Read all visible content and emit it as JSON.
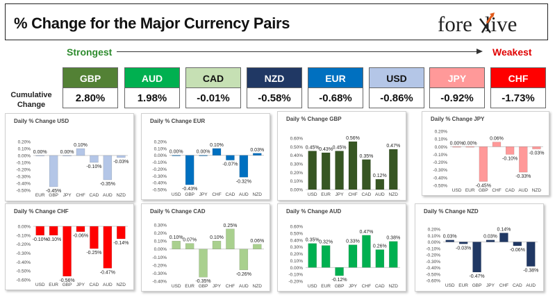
{
  "header": {
    "title": "% Change for the Major Currency Pairs",
    "logo_text": "forexlive"
  },
  "scale": {
    "strongest": "Strongest",
    "weakest": "Weakest"
  },
  "cumulative_label": "Cumulative Change",
  "currencies": [
    {
      "name": "GBP",
      "value": "2.80%",
      "color": "#538135",
      "text_color": "#ffffff"
    },
    {
      "name": "AUD",
      "value": "1.98%",
      "color": "#00b050",
      "text_color": "#ffffff"
    },
    {
      "name": "CAD",
      "value": "-0.01%",
      "color": "#c6e0b4",
      "text_color": "#111111"
    },
    {
      "name": "NZD",
      "value": "-0.58%",
      "color": "#203864",
      "text_color": "#ffffff"
    },
    {
      "name": "EUR",
      "value": "-0.68%",
      "color": "#0070c0",
      "text_color": "#ffffff"
    },
    {
      "name": "USD",
      "value": "-0.86%",
      "color": "#b4c6e7",
      "text_color": "#111111"
    },
    {
      "name": "JPY",
      "value": "-0.92%",
      "color": "#ff9999",
      "text_color": "#ffffff"
    },
    {
      "name": "CHF",
      "value": "-1.73%",
      "color": "#ff0000",
      "text_color": "#ffffff"
    }
  ],
  "chart_data": [
    {
      "type": "bar",
      "title": "Daily % Change USD",
      "color": "#b4c6e7",
      "categories": [
        "EUR",
        "GBP",
        "JPY",
        "CHF",
        "CAD",
        "AUD",
        "NZD"
      ],
      "values": [
        0.0,
        -0.45,
        0.0,
        0.1,
        -0.1,
        -0.35,
        -0.03
      ],
      "labels": [
        "0.00%",
        "-0.45%",
        "0.00%",
        "0.10%",
        "-0.10%",
        "-0.35%",
        "-0.03%"
      ],
      "yticks": [
        "0.20%",
        "0.10%",
        "0.00%",
        "-0.10%",
        "-0.20%",
        "-0.30%",
        "-0.40%",
        "-0.50%"
      ],
      "ylim": [
        -0.5,
        0.2
      ]
    },
    {
      "type": "bar",
      "title": "Daily % Change EUR",
      "color": "#0070c0",
      "categories": [
        "USD",
        "GBP",
        "JPY",
        "CHF",
        "CAD",
        "AUD",
        "NZD"
      ],
      "values": [
        0.0,
        -0.43,
        0.0,
        0.1,
        -0.07,
        -0.32,
        0.03
      ],
      "labels": [
        "0.00%",
        "-0.43%",
        "0.00%",
        "0.10%",
        "-0.07%",
        "-0.32%",
        "0.03%"
      ],
      "yticks": [
        "0.20%",
        "0.10%",
        "0.00%",
        "-0.10%",
        "-0.20%",
        "-0.30%",
        "-0.40%",
        "-0.50%"
      ],
      "ylim": [
        -0.5,
        0.2
      ]
    },
    {
      "type": "bar",
      "title": "Daily % Change GBP",
      "color": "#375623",
      "categories": [
        "USD",
        "EUR",
        "JPY",
        "CHF",
        "CAD",
        "AUD",
        "NZD"
      ],
      "values": [
        0.45,
        0.43,
        0.45,
        0.56,
        0.35,
        0.12,
        0.47
      ],
      "labels": [
        "0.45%",
        "0.43%",
        "0.45%",
        "0.56%",
        "0.35%",
        "0.12%",
        "0.47%"
      ],
      "yticks": [
        "0.60%",
        "0.50%",
        "0.40%",
        "0.30%",
        "0.20%",
        "0.10%",
        "0.00%"
      ],
      "ylim": [
        0,
        0.6
      ]
    },
    {
      "type": "bar",
      "title": "Daily % Change JPY",
      "color": "#ff9999",
      "categories": [
        "USD",
        "EUR",
        "GBP",
        "CHF",
        "CAD",
        "AUD",
        "NZD"
      ],
      "values": [
        0.0,
        0.0,
        -0.45,
        0.06,
        -0.1,
        -0.33,
        -0.03
      ],
      "labels": [
        "0.00%",
        "0.00%",
        "-0.45%",
        "0.06%",
        "-0.10%",
        "-0.33%",
        "-0.03%"
      ],
      "yticks": [
        "0.20%",
        "0.10%",
        "0.00%",
        "-0.10%",
        "-0.20%",
        "-0.30%",
        "-0.40%",
        "-0.50%"
      ],
      "ylim": [
        -0.5,
        0.2
      ]
    },
    {
      "type": "bar",
      "title": "Daily % Change CHF",
      "color": "#ff0000",
      "categories": [
        "USD",
        "EUR",
        "GBP",
        "JPY",
        "CAD",
        "AUD",
        "NZD"
      ],
      "values": [
        -0.1,
        -0.1,
        -0.56,
        -0.06,
        -0.25,
        -0.47,
        -0.14
      ],
      "labels": [
        "-0.10%",
        "-0.10%",
        "-0.56%",
        "-0.06%",
        "-0.25%",
        "-0.47%",
        "-0.14%"
      ],
      "yticks": [
        "0.00%",
        "-0.10%",
        "-0.20%",
        "-0.30%",
        "-0.40%",
        "-0.50%",
        "-0.60%"
      ],
      "ylim": [
        -0.6,
        0
      ]
    },
    {
      "type": "bar",
      "title": "Daily % Change CAD",
      "color": "#a9d08e",
      "categories": [
        "USD",
        "EUR",
        "GBP",
        "JPY",
        "CHF",
        "AUD",
        "NZD"
      ],
      "values": [
        0.1,
        0.07,
        -0.35,
        0.1,
        0.25,
        -0.26,
        0.06
      ],
      "labels": [
        "0.10%",
        "0.07%",
        "-0.35%",
        "0.10%",
        "0.25%",
        "-0.26%",
        "0.06%"
      ],
      "yticks": [
        "0.30%",
        "0.20%",
        "0.10%",
        "0.00%",
        "-0.10%",
        "-0.20%",
        "-0.30%",
        "-0.40%"
      ],
      "ylim": [
        -0.4,
        0.3
      ]
    },
    {
      "type": "bar",
      "title": "Daily % Change AUD",
      "color": "#00b050",
      "categories": [
        "USD",
        "EUR",
        "GBP",
        "JPY",
        "CHF",
        "CAD",
        "NZD"
      ],
      "values": [
        0.35,
        0.32,
        -0.12,
        0.33,
        0.47,
        0.26,
        0.38
      ],
      "labels": [
        "0.35%",
        "0.32%",
        "-0.12%",
        "0.33%",
        "0.47%",
        "0.26%",
        "0.38%"
      ],
      "yticks": [
        "0.60%",
        "0.50%",
        "0.40%",
        "0.30%",
        "0.20%",
        "0.10%",
        "0.00%",
        "-0.10%",
        "-0.20%"
      ],
      "ylim": [
        -0.2,
        0.6
      ]
    },
    {
      "type": "bar",
      "title": "Daily % Change NZD",
      "color": "#203864",
      "categories": [
        "USD",
        "EUR",
        "GBP",
        "JPY",
        "CHF",
        "CAD",
        "AUD"
      ],
      "values": [
        0.03,
        -0.03,
        -0.47,
        0.03,
        0.14,
        -0.06,
        -0.38
      ],
      "labels": [
        "0.03%",
        "-0.03%",
        "-0.47%",
        "0.03%",
        "0.14%",
        "-0.06%",
        "-0.38%"
      ],
      "yticks": [
        "0.20%",
        "0.10%",
        "0.00%",
        "-0.10%",
        "-0.20%",
        "-0.30%",
        "-0.40%",
        "-0.50%",
        "-0.60%"
      ],
      "ylim": [
        -0.6,
        0.2
      ]
    }
  ]
}
